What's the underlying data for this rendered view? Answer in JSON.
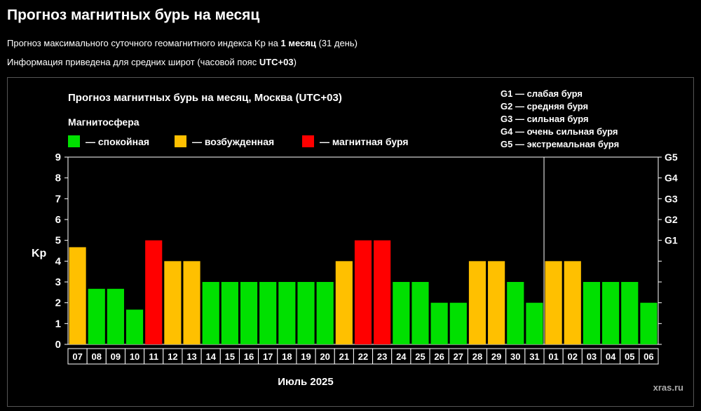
{
  "header": {
    "title": "Прогноз магнитных бурь на месяц",
    "line1_prefix": "Прогноз максимального суточного геомагнитного индекса Kp на ",
    "line1_bold": "1 месяц",
    "line1_suffix": " (31 день)",
    "line2_prefix": "Информация приведена для средних широт (часовой пояс ",
    "line2_bold": "UTC+03",
    "line2_suffix": ")"
  },
  "chart_data": {
    "type": "bar",
    "title": "Прогноз магнитных бурь на месяц, Москва (UTC+03)",
    "ylabel": "Kp",
    "xlabel": "Июль 2025",
    "watermark": "xras.ru",
    "ylim": [
      0,
      9
    ],
    "yticks": [
      "0",
      "1",
      "2",
      "3",
      "4",
      "5",
      "6",
      "7",
      "8",
      "9"
    ],
    "g_ticks": [
      {
        "label": "G1",
        "value": 5
      },
      {
        "label": "G2",
        "value": 6
      },
      {
        "label": "G3",
        "value": 7
      },
      {
        "label": "G4",
        "value": 8
      },
      {
        "label": "G5",
        "value": 9
      }
    ],
    "legend_heading": "Магнитосфера",
    "legend": [
      {
        "label": "— спокойная",
        "color": "#00e000"
      },
      {
        "label": "— возбужденная",
        "color": "#ffc000"
      },
      {
        "label": "— магнитная буря",
        "color": "#ff0000"
      }
    ],
    "g_legend": [
      "G1 — слабая буря",
      "G2 — средняя буря",
      "G3 — сильная буря",
      "G4 — очень сильная буря",
      "G5 — экстремальная буря"
    ],
    "categories": [
      "07",
      "08",
      "09",
      "10",
      "11",
      "12",
      "13",
      "14",
      "15",
      "16",
      "17",
      "18",
      "19",
      "20",
      "21",
      "22",
      "23",
      "24",
      "25",
      "26",
      "27",
      "28",
      "29",
      "30",
      "31",
      "01",
      "02",
      "03",
      "04",
      "05",
      "06"
    ],
    "values": [
      4.67,
      2.67,
      2.67,
      1.67,
      5,
      4,
      4,
      3,
      3,
      3,
      3,
      3,
      3,
      3,
      4,
      5,
      5,
      3,
      3,
      2,
      2,
      4,
      4,
      3,
      2,
      4,
      4,
      3,
      3,
      3,
      2
    ],
    "month_split_after": "31",
    "colors": {
      "quiet": "#00e000",
      "active": "#ffc000",
      "storm": "#ff0000"
    }
  }
}
